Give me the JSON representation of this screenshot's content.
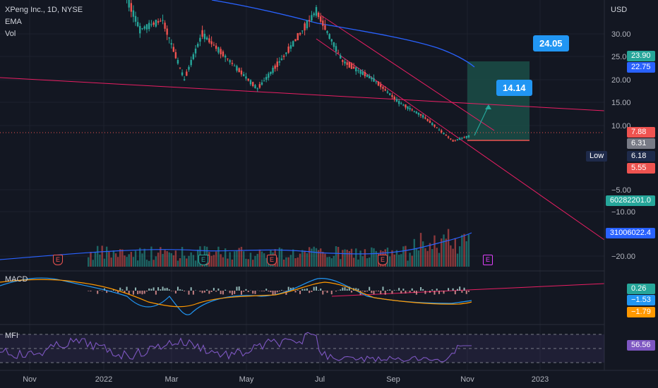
{
  "legend": {
    "symbol": "XPeng Inc., 1D, NYSE",
    "ema": "EMA",
    "vol": "Vol"
  },
  "currency": "USD",
  "price_axis": [
    "30.00",
    "25.00",
    "20.00",
    "15.00",
    "10.00",
    "−5.00",
    "−10.00",
    "−20.00"
  ],
  "time_axis": [
    "Nov",
    "2022",
    "Mar",
    "May",
    "Jul",
    "Sep",
    "Nov",
    "2023"
  ],
  "callouts": {
    "target": "24.05",
    "mid": "14.14"
  },
  "tags": {
    "t1": "23.90",
    "t2": "22.75",
    "t3": "7.88",
    "t4": "6.31",
    "low_label": "Low",
    "low_value": "6.18",
    "t5": "5.55",
    "vol_last": "60282201.0",
    "vol_ma": "31006022.4",
    "macd_hist": "0.26",
    "macd": "−1.53",
    "signal": "−1.79",
    "mfi": "56.56"
  },
  "panes": {
    "macd": "MACD",
    "mfi": "MFI"
  },
  "earnings_marker": "E",
  "colors": {
    "background": "#131722",
    "up": "#26a69a",
    "down": "#ef5350",
    "ema": "#2962ff",
    "channel": "#e91e63",
    "target_zone": "#1b4d47",
    "callout": "#2196f3",
    "mfi": "#7e57c2"
  },
  "chart_data": {
    "type": "candlestick",
    "symbol": "XPEV",
    "interval": "1D",
    "price_axis_ticks": [
      30,
      25,
      20,
      15,
      10
    ],
    "key_levels": {
      "target": 24.05,
      "mid_target": 14.14,
      "last": 7.88,
      "low": 6.18
    },
    "price_path": [
      {
        "date": "2021-12-20",
        "close": 46
      },
      {
        "date": "2022-01-10",
        "close": 45
      },
      {
        "date": "2022-02-01",
        "close": 31
      },
      {
        "date": "2022-02-20",
        "close": 33
      },
      {
        "date": "2022-03-10",
        "close": 20
      },
      {
        "date": "2022-03-25",
        "close": 30
      },
      {
        "date": "2022-05-10",
        "close": 18
      },
      {
        "date": "2022-06-01",
        "close": 25
      },
      {
        "date": "2022-06-28",
        "close": 35
      },
      {
        "date": "2022-07-20",
        "close": 24
      },
      {
        "date": "2022-08-15",
        "close": 20
      },
      {
        "date": "2022-09-05",
        "close": 15
      },
      {
        "date": "2022-09-25",
        "close": 12
      },
      {
        "date": "2022-10-20",
        "close": 6.7
      },
      {
        "date": "2022-11-04",
        "close": 7.88
      }
    ],
    "indicators": {
      "macd": {
        "histogram": 0.26,
        "macd": -1.53,
        "signal": -1.79
      },
      "mfi": 56.56,
      "volume": {
        "last": 60282201.0,
        "ma": 31006022.4
      }
    }
  }
}
